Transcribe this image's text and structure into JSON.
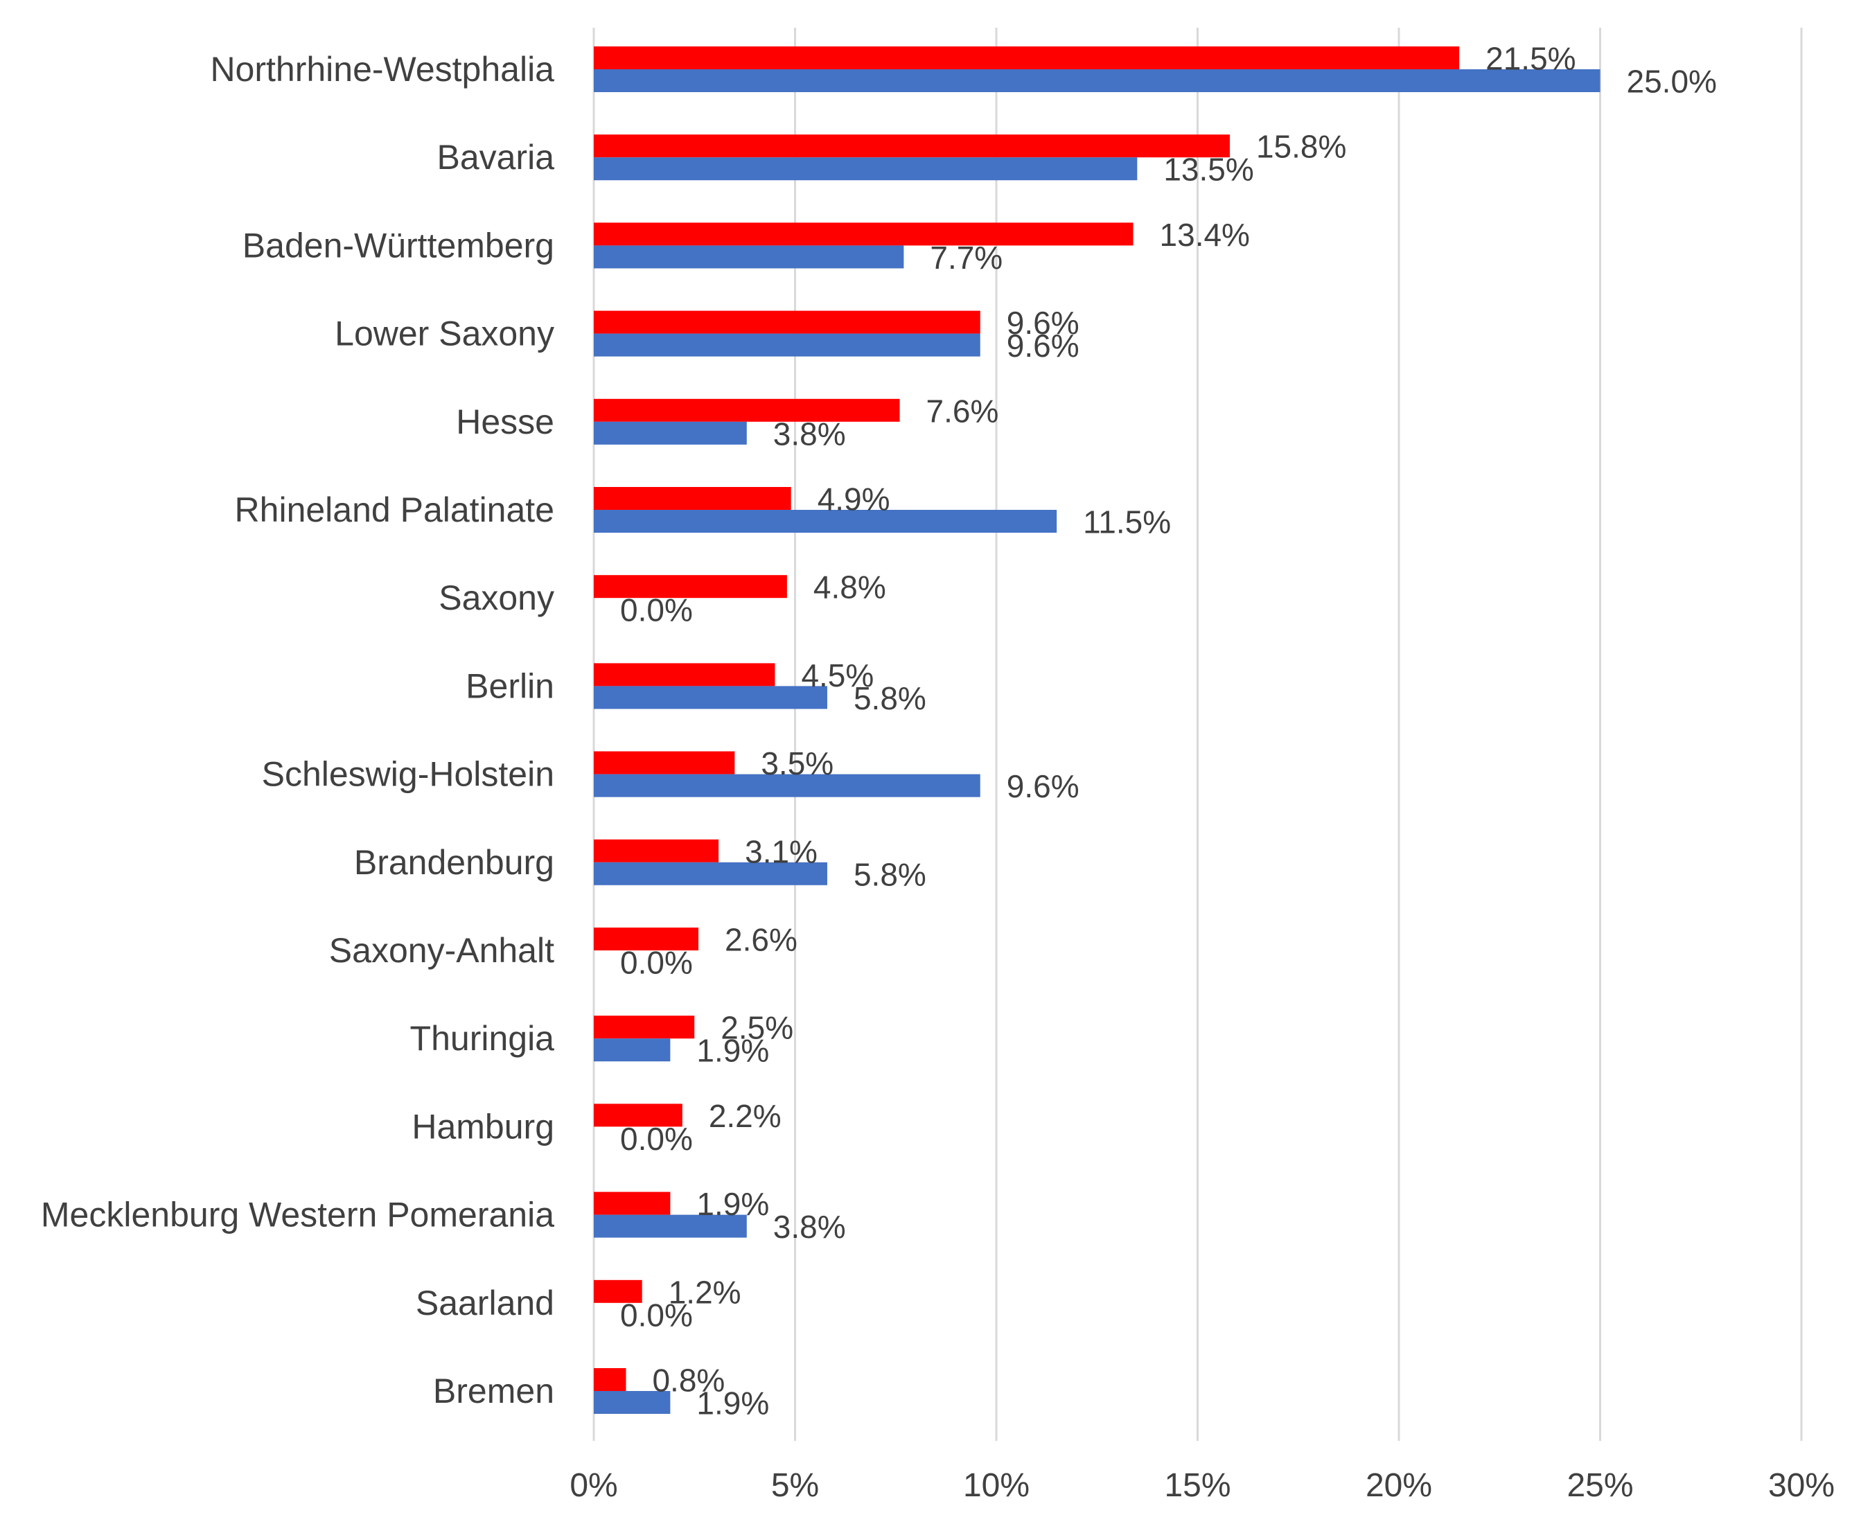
{
  "chart_data": {
    "type": "bar",
    "orientation": "horizontal",
    "title": "",
    "xlabel": "",
    "ylabel": "",
    "xlim": [
      0,
      30
    ],
    "x_ticks": [
      "0%",
      "5%",
      "10%",
      "15%",
      "20%",
      "25%",
      "30%"
    ],
    "x_tick_values": [
      0,
      5,
      10,
      15,
      20,
      25,
      30
    ],
    "grid": "vertical",
    "legend": "none",
    "categories": [
      "Northrhine-Westphalia",
      "Bavaria",
      "Baden-Württemberg",
      "Lower Saxony",
      "Hesse",
      "Rhineland Palatinate",
      "Saxony",
      "Berlin",
      "Schleswig-Holstein",
      "Brandenburg",
      "Saxony-Anhalt",
      "Thuringia",
      "Hamburg",
      "Mecklenburg Western Pomerania",
      "Saarland",
      "Bremen"
    ],
    "series": [
      {
        "color": "#ff0000",
        "values": [
          21.5,
          15.8,
          13.4,
          9.6,
          7.6,
          4.9,
          4.8,
          4.5,
          3.5,
          3.1,
          2.6,
          2.5,
          2.2,
          1.9,
          1.2,
          0.8
        ],
        "labels": [
          "21.5%",
          "15.8%",
          "13.4%",
          "9.6%",
          "7.6%",
          "4.9%",
          "4.8%",
          "4.5%",
          "3.5%",
          "3.1%",
          "2.6%",
          "2.5%",
          "2.2%",
          "1.9%",
          "1.2%",
          "0.8%"
        ]
      },
      {
        "color": "#4472c4",
        "values": [
          25.0,
          13.5,
          7.7,
          9.6,
          3.8,
          11.5,
          0.0,
          5.8,
          9.6,
          5.8,
          0.0,
          1.9,
          0.0,
          3.8,
          0.0,
          1.9
        ],
        "labels": [
          "25.0%",
          "13.5%",
          "7.7%",
          "9.6%",
          "3.8%",
          "11.5%",
          "0.0%",
          "5.8%",
          "9.6%",
          "5.8%",
          "0.0%",
          "1.9%",
          "0.0%",
          "3.8%",
          "0.0%",
          "1.9%"
        ]
      }
    ]
  }
}
